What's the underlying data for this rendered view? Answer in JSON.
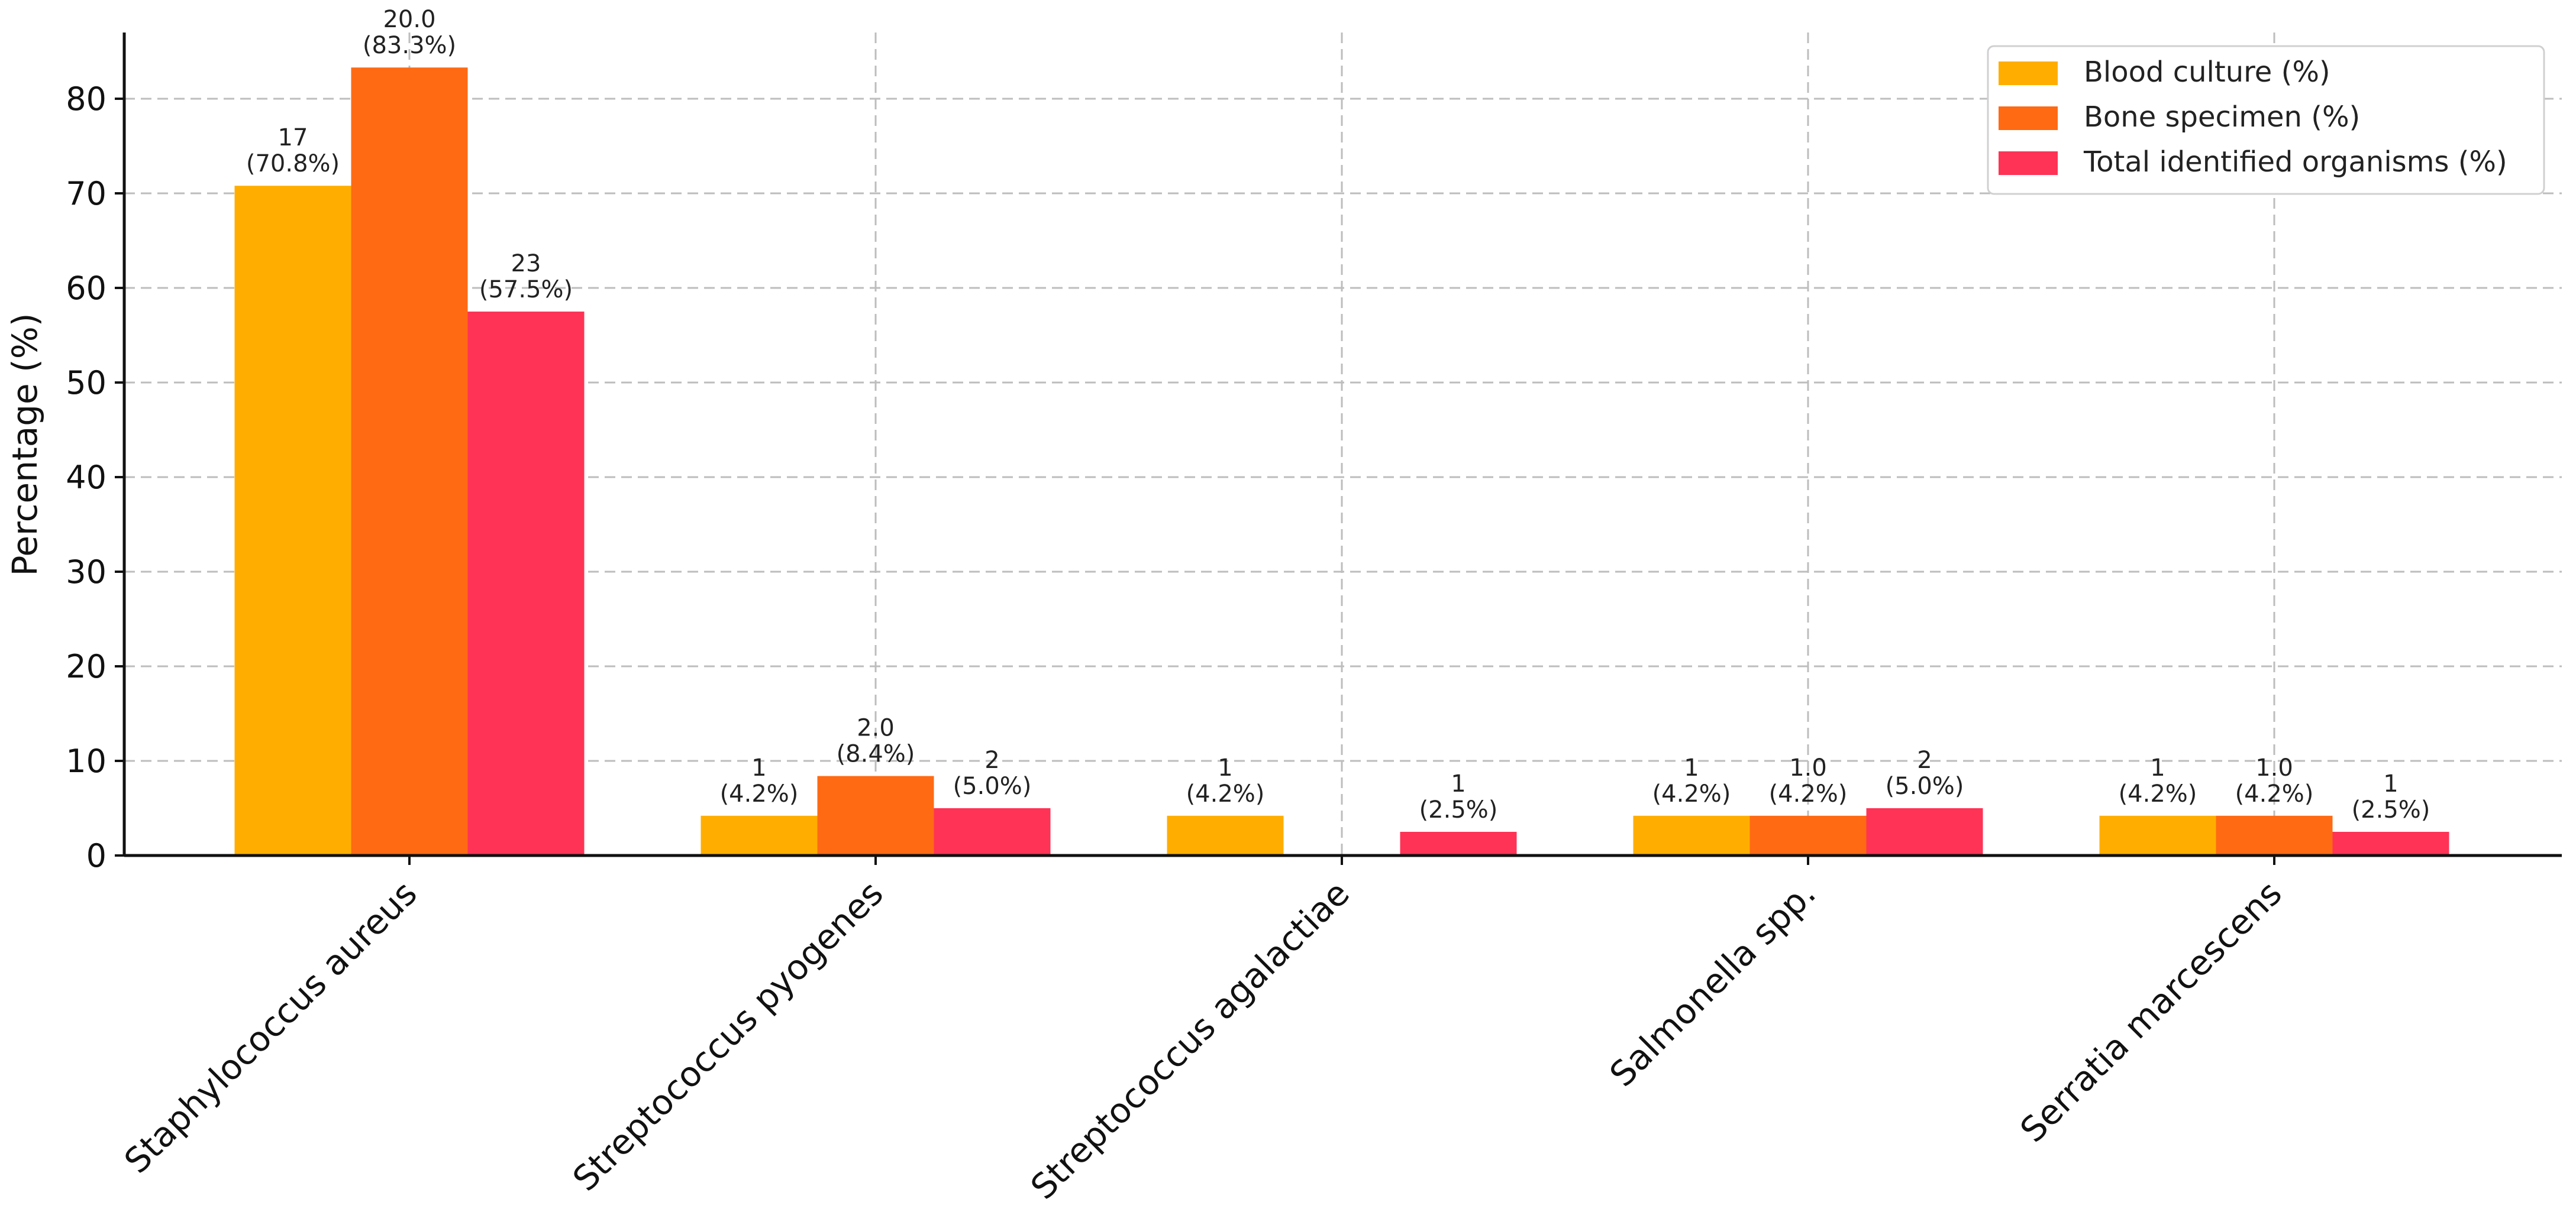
{
  "chart_data": {
    "type": "bar",
    "title": "",
    "xlabel": "",
    "ylabel": "Percentage (%)",
    "ylim": [
      0,
      87
    ],
    "yticks": [
      "0",
      "10",
      "20",
      "30",
      "40",
      "50",
      "60",
      "70",
      "80"
    ],
    "grid": true,
    "legend_position": "top-right",
    "categories": [
      "Staphylococcus aureus",
      "Streptococcus pyogenes",
      "Streptococcus agalactiae",
      "Salmonella spp.",
      "Serratia marcescens"
    ],
    "series": [
      {
        "name": "Blood culture (%)",
        "color": "#FFAE00",
        "values": [
          70.8,
          4.2,
          4.2,
          4.2,
          4.2
        ],
        "count_labels": [
          "17",
          "1",
          "1",
          "1",
          "1"
        ],
        "pct_labels": [
          "(70.8%)",
          "(4.2%)",
          "(4.2%)",
          "(4.2%)",
          "(4.2%)"
        ]
      },
      {
        "name": "Bone specimen (%)",
        "color": "#FF6A13",
        "values": [
          83.3,
          8.4,
          0,
          4.2,
          4.2
        ],
        "count_labels": [
          "20.0",
          "2.0",
          "",
          "1.0",
          "1.0"
        ],
        "pct_labels": [
          "(83.3%)",
          "(8.4%)",
          "",
          "(4.2%)",
          "(4.2%)"
        ]
      },
      {
        "name": "Total identified organisms (%)",
        "color": "#FF3355",
        "values": [
          57.5,
          5.0,
          2.5,
          5.0,
          2.5
        ],
        "count_labels": [
          "23",
          "2",
          "1",
          "2",
          "1"
        ],
        "pct_labels": [
          "(57.5%)",
          "(5.0%)",
          "(2.5%)",
          "(5.0%)",
          "(2.5%)"
        ]
      }
    ]
  }
}
